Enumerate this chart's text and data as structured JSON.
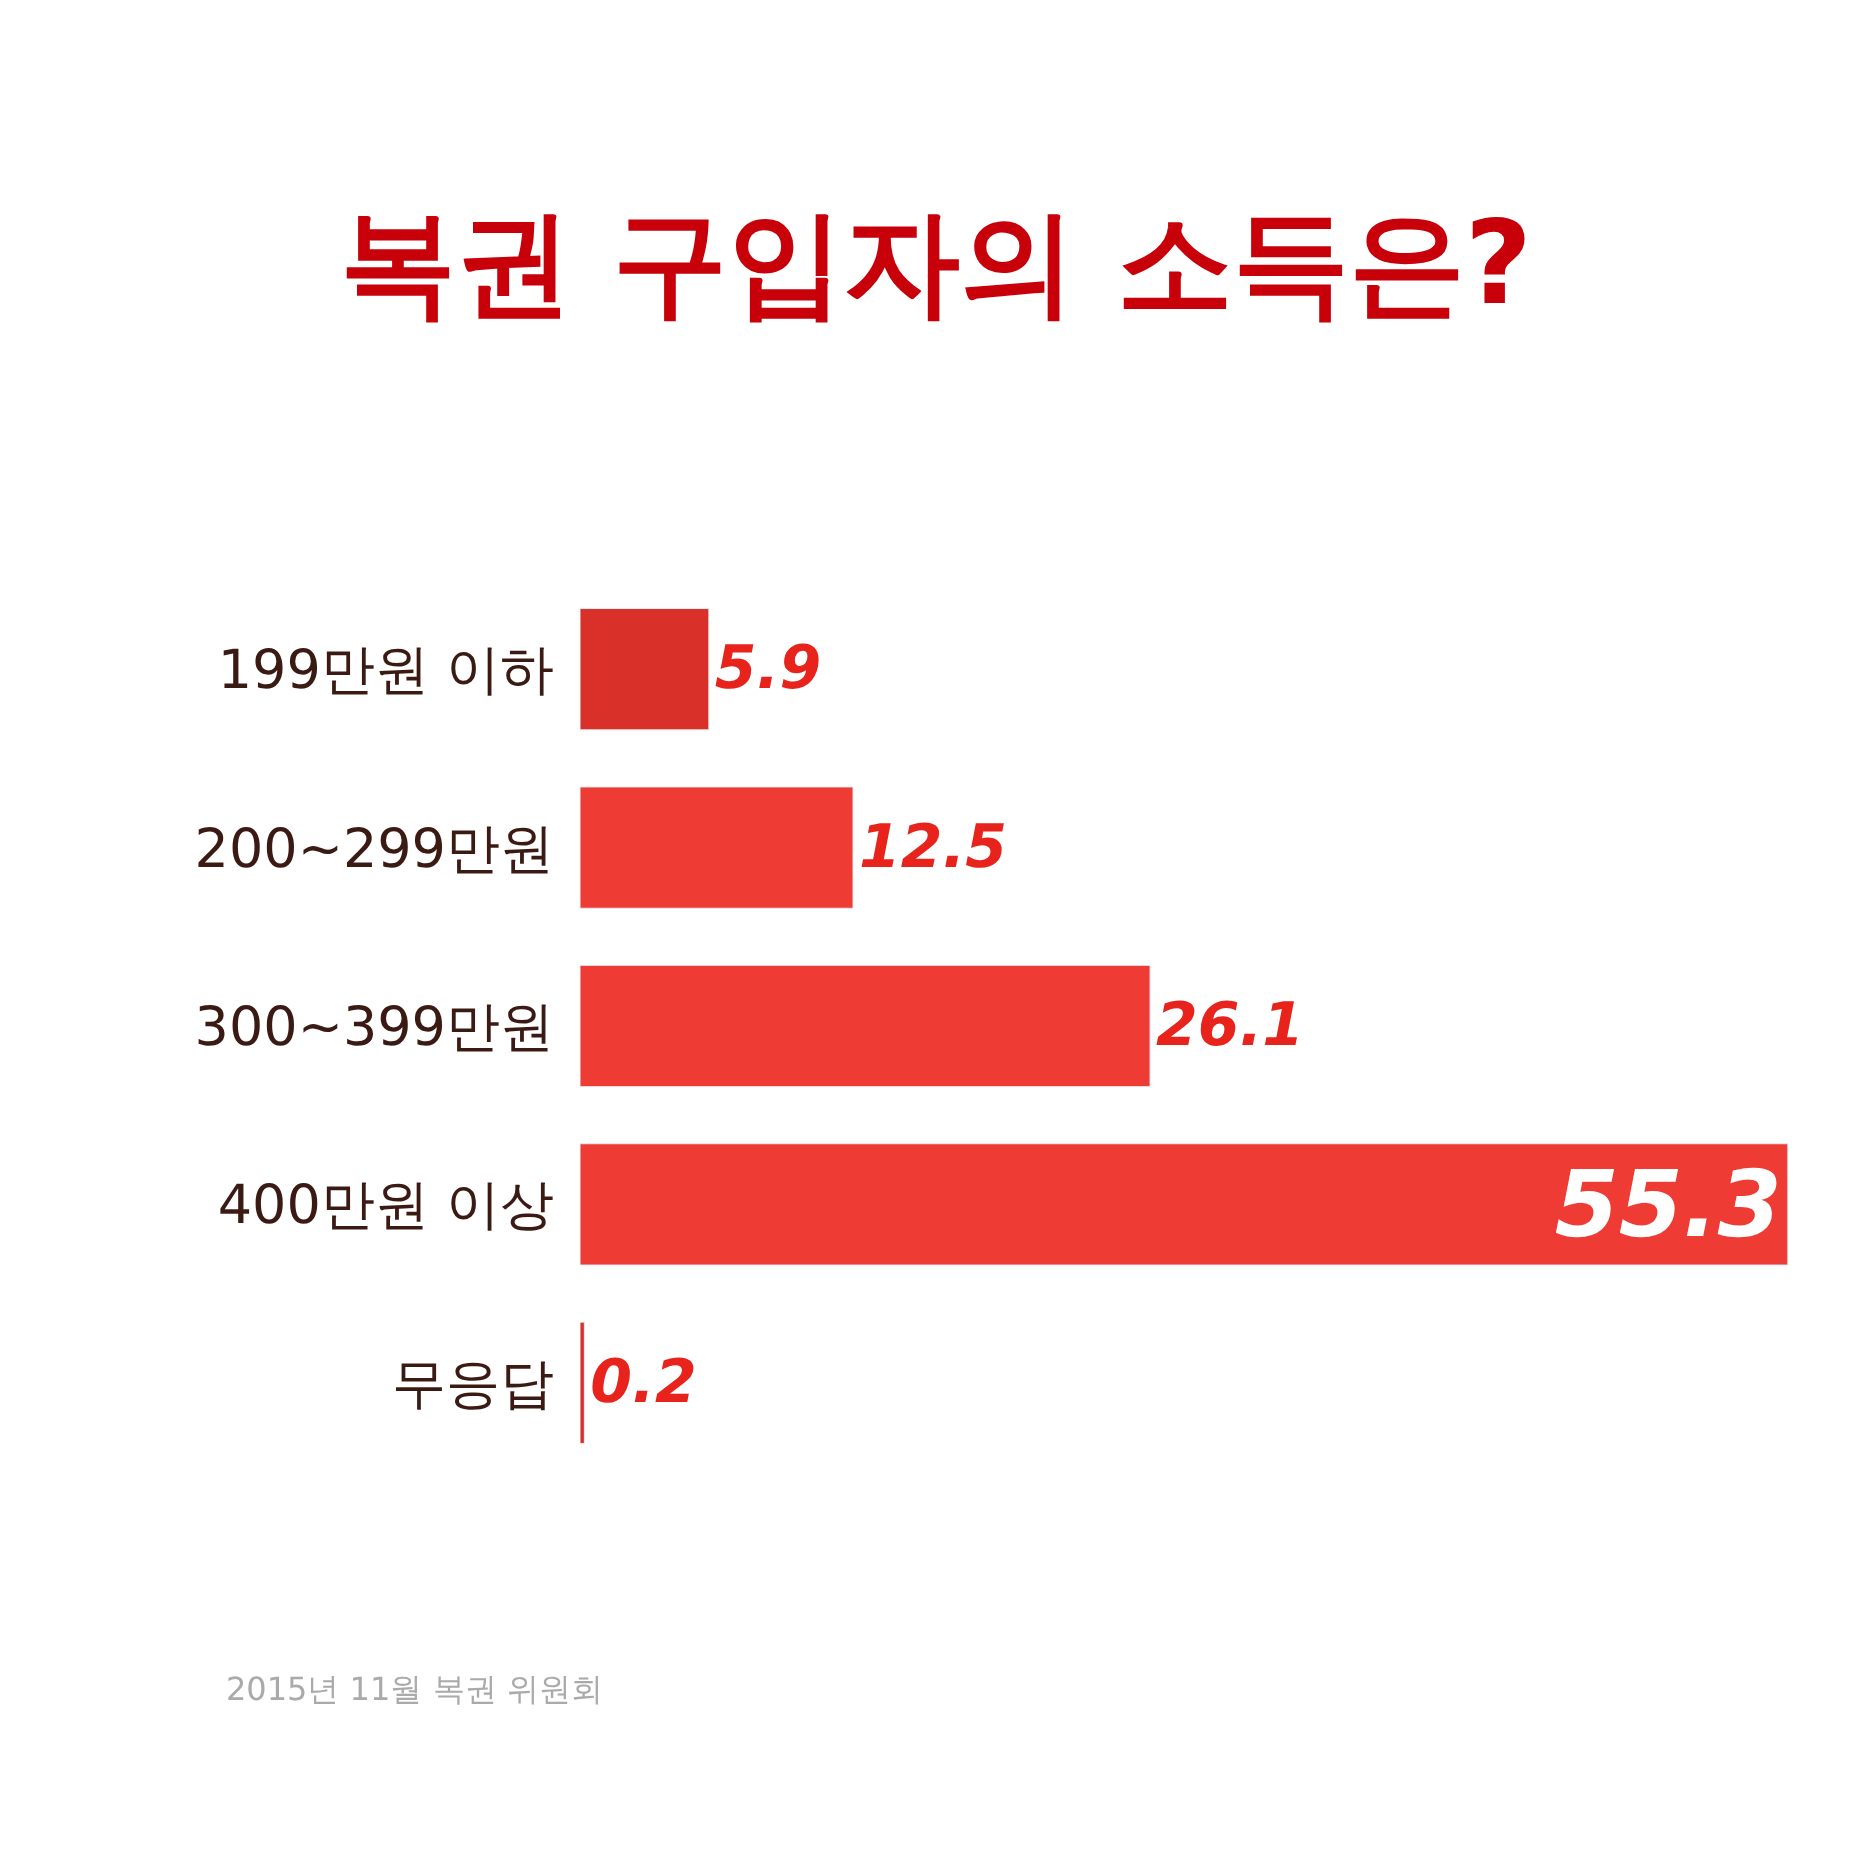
{
  "chart_data": {
    "type": "bar",
    "orientation": "horizontal",
    "title": "복권 구입자의 소득은?",
    "categories": [
      "199만원 이하",
      "200~299만원",
      "300~399만원",
      "400만원 이상",
      "무응답"
    ],
    "values": [
      5.9,
      12.5,
      26.1,
      55.3,
      0.2
    ],
    "colors": [
      "#d9302a",
      "#ee3b33",
      "#ee3b33",
      "#ee3b33",
      "#d9302a"
    ],
    "data_labels": true,
    "legend": false,
    "tick_labels": "y",
    "annotations": [
      "2015년 11월 복권 위원회"
    ]
  }
}
